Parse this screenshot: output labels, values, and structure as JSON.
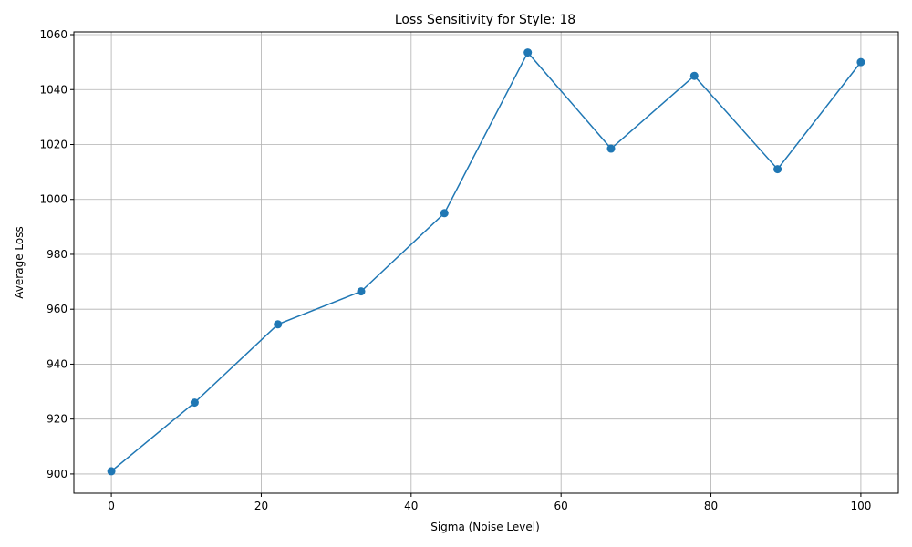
{
  "chart_data": {
    "type": "line",
    "title": "Loss Sensitivity for Style: 18",
    "xlabel": "Sigma (Noise Level)",
    "ylabel": "Average Loss",
    "x": [
      0,
      11.11,
      22.22,
      33.33,
      44.44,
      55.56,
      66.67,
      77.78,
      88.89,
      100
    ],
    "series": [
      {
        "values": [
          901,
          926,
          954.5,
          966.5,
          995,
          1053.5,
          1018.5,
          1045,
          1011,
          1050
        ],
        "color": "#1f77b4",
        "marker": "circle"
      }
    ],
    "xlim": [
      -5,
      105
    ],
    "ylim": [
      893,
      1061
    ],
    "xticks": [
      0,
      20,
      40,
      60,
      80,
      100
    ],
    "yticks": [
      900,
      920,
      940,
      960,
      980,
      1000,
      1020,
      1040,
      1060
    ],
    "grid": true,
    "grid_color": "#b0b0b0"
  }
}
